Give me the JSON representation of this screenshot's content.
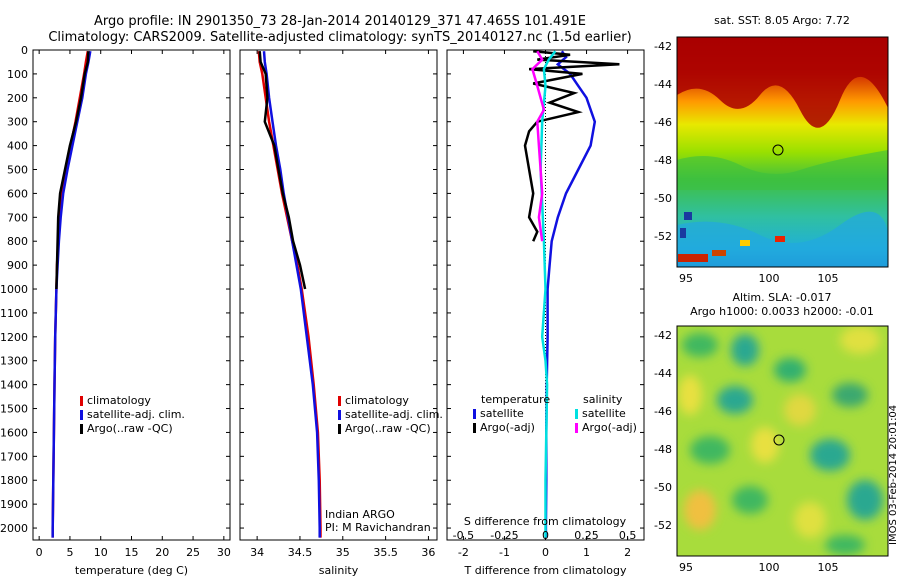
{
  "header": {
    "title_line1": "Argo profile: IN 2901350_73 28-Jan-2014 20140129_371 47.465S 101.491E",
    "title_line2": "Climatology: CARS2009. Satellite-adjusted climatology: synTS_20140127.nc (1.5d earlier)"
  },
  "colors": {
    "climatology": "#e00000",
    "satellite": "#1010e0",
    "argo": "#000000",
    "sat_s": "#00e0e0",
    "argo_s": "#ff00ff"
  },
  "depth_axis": {
    "ticks": [
      0,
      100,
      200,
      300,
      400,
      500,
      600,
      700,
      800,
      900,
      1000,
      1100,
      1200,
      1300,
      1400,
      1500,
      1600,
      1700,
      1800,
      1900,
      2000
    ]
  },
  "chart_data": [
    {
      "type": "line",
      "name": "temperature",
      "xlabel": "temperature (deg C)",
      "ylabel": "",
      "xlim": [
        -1,
        31
      ],
      "ylim": [
        2050,
        0
      ],
      "xticks": [
        0,
        5,
        10,
        15,
        20,
        25,
        30
      ],
      "legend": {
        "position": "bottom-left",
        "entries": [
          "climatology",
          "satellite-adj. clim.",
          "Argo(..raw -QC)"
        ]
      },
      "series": [
        {
          "name": "climatology",
          "color_key": "climatology",
          "depth": [
            5,
            50,
            100,
            200,
            300,
            400,
            500,
            600,
            700,
            800,
            900,
            1000,
            1200,
            1400,
            1600,
            1800,
            2000,
            2040
          ],
          "values": [
            7.9,
            7.6,
            7.3,
            6.6,
            5.9,
            5.1,
            4.4,
            3.7,
            3.3,
            3.1,
            2.9,
            2.8,
            2.6,
            2.5,
            2.4,
            2.3,
            2.2,
            2.2
          ]
        },
        {
          "name": "satellite-adj. clim.",
          "color_key": "satellite",
          "depth": [
            5,
            50,
            100,
            200,
            300,
            400,
            500,
            600,
            700,
            800,
            900,
            1000,
            1200,
            1400,
            1600,
            1800,
            2000,
            2040
          ],
          "values": [
            8.3,
            8.0,
            7.6,
            7.0,
            6.2,
            5.4,
            4.6,
            3.9,
            3.5,
            3.2,
            3.0,
            2.8,
            2.6,
            2.5,
            2.4,
            2.3,
            2.2,
            2.2
          ]
        },
        {
          "name": "Argo(..raw -QC)",
          "color_key": "argo",
          "depth": [
            5,
            50,
            100,
            200,
            300,
            400,
            500,
            600,
            700,
            800,
            900,
            1000
          ],
          "values": [
            8.0,
            7.9,
            7.4,
            6.8,
            6.0,
            5.0,
            4.2,
            3.4,
            3.1,
            3.0,
            2.9,
            2.8
          ]
        }
      ]
    },
    {
      "type": "line",
      "name": "salinity",
      "xlabel": "salinity",
      "ylabel": "",
      "xlim": [
        33.8,
        36.1
      ],
      "ylim": [
        2050,
        0
      ],
      "xticks": [
        34,
        34.5,
        35,
        35.5,
        36
      ],
      "legend": {
        "position": "bottom-right",
        "entries": [
          "climatology",
          "satellite-adj. clim.",
          "Argo(..raw -QC)"
        ]
      },
      "annotations": [
        "Indian ARGO",
        "PI: M Ravichandran"
      ],
      "series": [
        {
          "name": "climatology",
          "color_key": "climatology",
          "depth": [
            5,
            50,
            100,
            200,
            300,
            400,
            500,
            600,
            700,
            800,
            900,
            1000,
            1200,
            1400,
            1600,
            1800,
            2000,
            2040
          ],
          "values": [
            34.02,
            34.03,
            34.06,
            34.1,
            34.14,
            34.19,
            34.24,
            34.29,
            34.35,
            34.41,
            34.47,
            34.52,
            34.6,
            34.66,
            34.71,
            34.73,
            34.74,
            34.74
          ]
        },
        {
          "name": "satellite-adj. clim.",
          "color_key": "satellite",
          "depth": [
            5,
            50,
            100,
            200,
            300,
            400,
            500,
            600,
            700,
            800,
            900,
            1000,
            1200,
            1400,
            1600,
            1800,
            2000,
            2040
          ],
          "values": [
            34.08,
            34.09,
            34.11,
            34.14,
            34.18,
            34.22,
            34.27,
            34.31,
            34.36,
            34.41,
            34.46,
            34.51,
            34.58,
            34.65,
            34.7,
            34.72,
            34.73,
            34.73
          ]
        },
        {
          "name": "Argo(..raw -QC)",
          "color_key": "argo",
          "depth": [
            5,
            50,
            100,
            200,
            300,
            400,
            500,
            600,
            700,
            800,
            900,
            1000
          ],
          "values": [
            34.03,
            34.04,
            34.1,
            34.12,
            34.09,
            34.2,
            34.25,
            34.3,
            34.37,
            34.42,
            34.5,
            34.56
          ]
        }
      ]
    },
    {
      "type": "line",
      "name": "difference",
      "xlabel": "T difference from climatology",
      "xlabel_top": "S difference from climatology",
      "xlim": [
        -2.4,
        2.4
      ],
      "ylim": [
        2050,
        0
      ],
      "xticks": [
        -2,
        -1,
        0,
        1,
        2
      ],
      "xticks_s": [
        "-0.5",
        "-0.25",
        "0",
        "0.25",
        "0.5"
      ],
      "xticks_s_values": [
        -0.5,
        -0.25,
        0,
        0.25,
        0.5
      ],
      "legend": {
        "position": "bottom",
        "temperature_header": "temperature",
        "salinity_header": "salinity",
        "entries_t": [
          "satellite",
          "Argo(-adj)"
        ],
        "entries_s": [
          "satellite",
          "Argo(-adj)"
        ]
      },
      "series": [
        {
          "name": "T satellite",
          "color_key": "satellite",
          "depth": [
            5,
            30,
            60,
            100,
            150,
            200,
            300,
            400,
            500,
            600,
            700,
            800,
            900,
            1000,
            1200,
            1400,
            1600,
            1800,
            2000,
            2040
          ],
          "values": [
            0.4,
            0.5,
            0.3,
            0.6,
            0.8,
            1.0,
            1.2,
            1.1,
            0.8,
            0.5,
            0.3,
            0.15,
            0.1,
            0.05,
            0.05,
            0.03,
            0.02,
            0.02,
            0.01,
            0.01
          ]
        },
        {
          "name": "T Argo(-adj)",
          "color_key": "argo",
          "depth": [
            5,
            20,
            40,
            60,
            80,
            100,
            140,
            180,
            220,
            260,
            300,
            340,
            400,
            500,
            600,
            700,
            760,
            800
          ],
          "values": [
            -0.3,
            0.6,
            -0.2,
            1.8,
            -0.4,
            0.9,
            -0.3,
            0.7,
            0.1,
            0.8,
            -0.2,
            -0.4,
            -0.5,
            -0.4,
            -0.3,
            -0.4,
            -0.2,
            -0.3
          ]
        },
        {
          "name": "S satellite",
          "color_key": "sat_s",
          "depth": [
            5,
            40,
            80,
            150,
            300,
            500,
            800,
            1000,
            1200,
            1300,
            1400,
            1600,
            1800,
            2000,
            2040
          ],
          "values": [
            0.06,
            0.02,
            -0.01,
            0.0,
            -0.02,
            -0.03,
            -0.01,
            0.0,
            -0.02,
            0.0,
            0.01,
            0.005,
            0.0,
            0.0,
            0.0
          ]
        },
        {
          "name": "S Argo(-adj)",
          "color_key": "argo_s",
          "depth": [
            5,
            40,
            80,
            150,
            250,
            300,
            400,
            500,
            600,
            700,
            800
          ],
          "values": [
            -0.05,
            -0.02,
            -0.08,
            -0.05,
            -0.01,
            -0.05,
            -0.04,
            -0.03,
            -0.02,
            -0.04,
            -0.02
          ]
        }
      ]
    }
  ],
  "maps": {
    "sst": {
      "title": "sat. SST: 8.05 Argo: 7.72",
      "yticks": [
        "-42",
        "-44",
        "-46",
        "-48",
        "-50",
        "-52"
      ],
      "xticks": [
        "95",
        "100",
        "105"
      ]
    },
    "sla": {
      "title1": "Altim. SLA: -0.017",
      "title2": "Argo h1000: 0.0033 h2000: -0.01",
      "yticks": [
        "-42",
        "-44",
        "-46",
        "-48",
        "-50",
        "-52"
      ],
      "xticks": [
        "95",
        "100",
        "105"
      ],
      "credit": "IMOS 03-Feb-2014 20:01:04"
    }
  }
}
